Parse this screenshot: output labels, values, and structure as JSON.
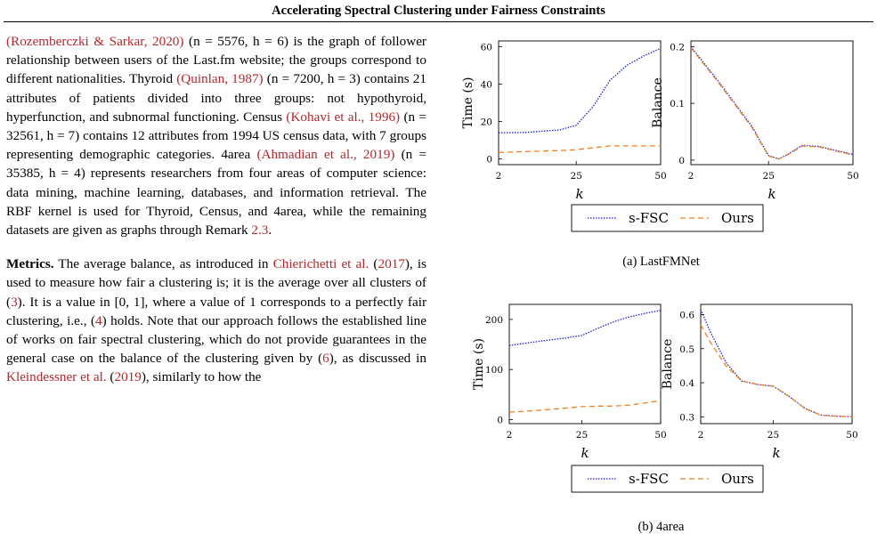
{
  "header": {
    "title": "Accelerating Spectral Clustering under Fairness Constraints"
  },
  "body_text": {
    "para1": [
      {
        "t": "(Rozemberczki & Sarkar, 2020)",
        "cite": true
      },
      {
        "t": " (n = 5576, h = 6) is the graph of follower relationship between users of the Last.fm website; the groups correspond to different nationalities. Thyroid "
      },
      {
        "t": "(Quinlan, 1987)",
        "cite": true
      },
      {
        "t": " (n = 7200, h = 3) contains 21 attributes of patients divided into three groups: not hypothyroid, hyperfunction, and subnormal functioning. Census "
      },
      {
        "t": "(Kohavi et al., 1996)",
        "cite": true
      },
      {
        "t": " (n = 32561, h = 7) contains 12 attributes from 1994 US census data, with 7 groups representing demographic categories. 4area "
      },
      {
        "t": "(Ahmadian et al., 2019)",
        "cite": true
      },
      {
        "t": " (n = 35385, h = 4) represents researchers from four areas of computer science: data mining, machine learning, databases, and information retrieval. The RBF kernel is used for Thyroid, Census, and 4area, while the remaining datasets are given as graphs through Remark "
      },
      {
        "t": "2.3",
        "cite": true
      },
      {
        "t": "."
      }
    ],
    "para2_heading": "Metrics.",
    "para2": [
      {
        "t": " The average balance, as introduced in "
      },
      {
        "t": "Chierichetti et al.",
        "cite": true
      },
      {
        "t": " ("
      },
      {
        "t": "2017",
        "cite": true
      },
      {
        "t": "), is used to measure how fair a clustering is; it is the average over all clusters of ("
      },
      {
        "t": "3",
        "cite": true
      },
      {
        "t": "). It is a value in [0, 1], where a value of 1 corresponds to a perfectly fair clustering, i.e., ("
      },
      {
        "t": "4",
        "cite": true
      },
      {
        "t": ") holds. Note that our approach follows the established line of works on fair spectral clustering, which do not provide guarantees in the general case on the balance of the clustering given by ("
      },
      {
        "t": "6",
        "cite": true
      },
      {
        "t": "), as discussed in "
      },
      {
        "t": "Kleindessner et al.",
        "cite": true
      },
      {
        "t": " ("
      },
      {
        "t": "2019",
        "cite": true
      },
      {
        "t": "), similarly to how the"
      }
    ]
  },
  "figures": [
    {
      "caption": "(a) LastFMNet",
      "legend": [
        "s-FSC",
        "Ours"
      ],
      "colors": {
        "s-FSC": "#1f1fd8",
        "Ours": "#f07f1e"
      }
    },
    {
      "caption": "(b) 4area",
      "legend": [
        "s-FSC",
        "Ours"
      ],
      "colors": {
        "s-FSC": "#1f1fd8",
        "Ours": "#f07f1e"
      }
    }
  ],
  "chart_data": [
    {
      "type": "line",
      "panel": "LastFMNet-time",
      "xlabel": "k",
      "ylabel": "Time (s)",
      "xticks": [
        2,
        25,
        50
      ],
      "yticks": [
        0,
        20,
        40,
        60
      ],
      "xlim": [
        2,
        50
      ],
      "ylim": [
        -3,
        63
      ],
      "series": [
        {
          "name": "s-FSC",
          "x": [
            2,
            10,
            20,
            25,
            30,
            35,
            40,
            45,
            50
          ],
          "y": [
            14,
            14.2,
            15.5,
            18,
            28,
            42,
            50,
            55,
            59
          ]
        },
        {
          "name": "Ours",
          "x": [
            2,
            10,
            20,
            25,
            30,
            35,
            40,
            45,
            50
          ],
          "y": [
            3.5,
            4,
            4.5,
            5,
            6,
            7,
            7,
            7,
            7
          ]
        }
      ]
    },
    {
      "type": "line",
      "panel": "LastFMNet-balance",
      "xlabel": "k",
      "ylabel": "Balance",
      "xticks": [
        2,
        25,
        50
      ],
      "yticks": [
        0,
        0.1,
        0.2
      ],
      "xlim": [
        2,
        50
      ],
      "ylim": [
        -0.008,
        0.21
      ],
      "series": [
        {
          "name": "s-FSC",
          "x": [
            2,
            10,
            20,
            25,
            28,
            30,
            35,
            40,
            45,
            50
          ],
          "y": [
            0.2,
            0.14,
            0.06,
            0.008,
            0.002,
            0.008,
            0.026,
            0.024,
            0.017,
            0.01
          ]
        },
        {
          "name": "Ours",
          "x": [
            2,
            10,
            20,
            25,
            28,
            30,
            35,
            40,
            45,
            50
          ],
          "y": [
            0.198,
            0.138,
            0.058,
            0.007,
            0.002,
            0.007,
            0.025,
            0.023,
            0.016,
            0.009
          ]
        }
      ]
    },
    {
      "type": "line",
      "panel": "4area-time",
      "xlabel": "k",
      "ylabel": "Time (s)",
      "xticks": [
        2,
        25,
        50
      ],
      "yticks": [
        0,
        100,
        200
      ],
      "xlim": [
        2,
        50
      ],
      "ylim": [
        -8,
        230
      ],
      "series": [
        {
          "name": "s-FSC",
          "x": [
            2,
            10,
            20,
            25,
            30,
            35,
            40,
            45,
            50
          ],
          "y": [
            148,
            155,
            163,
            168,
            182,
            195,
            205,
            212,
            218
          ]
        },
        {
          "name": "Ours",
          "x": [
            2,
            10,
            20,
            25,
            30,
            35,
            40,
            45,
            50
          ],
          "y": [
            15,
            18,
            23,
            26,
            27,
            27,
            29,
            33,
            38
          ]
        }
      ]
    },
    {
      "type": "line",
      "panel": "4area-balance",
      "xlabel": "k",
      "ylabel": "Balance",
      "xticks": [
        2,
        25,
        50
      ],
      "yticks": [
        0.3,
        0.4,
        0.5,
        0.6
      ],
      "xlim": [
        2,
        50
      ],
      "ylim": [
        0.28,
        0.63
      ],
      "series": [
        {
          "name": "s-FSC",
          "x": [
            2,
            5,
            10,
            15,
            20,
            25,
            30,
            35,
            40,
            45,
            50
          ],
          "y": [
            0.615,
            0.55,
            0.46,
            0.405,
            0.395,
            0.39,
            0.36,
            0.325,
            0.305,
            0.302,
            0.3
          ]
        },
        {
          "name": "Ours",
          "x": [
            2,
            5,
            10,
            15,
            20,
            25,
            30,
            35,
            40,
            45,
            50
          ],
          "y": [
            0.57,
            0.52,
            0.45,
            0.405,
            0.395,
            0.39,
            0.36,
            0.325,
            0.305,
            0.302,
            0.3
          ]
        }
      ]
    }
  ]
}
